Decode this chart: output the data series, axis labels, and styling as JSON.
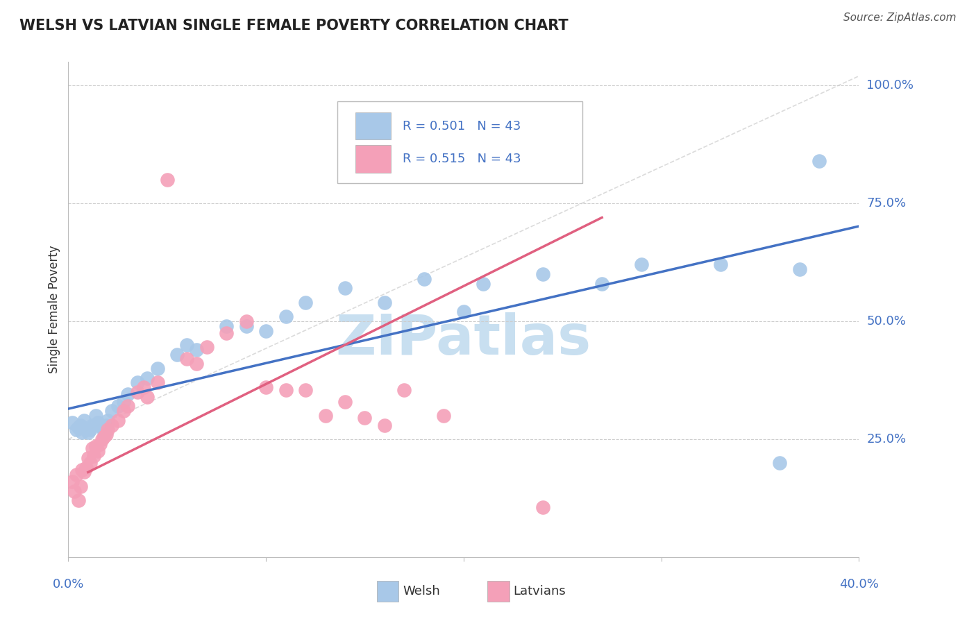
{
  "title": "WELSH VS LATVIAN SINGLE FEMALE POVERTY CORRELATION CHART",
  "source": "Source: ZipAtlas.com",
  "ylabel": "Single Female Poverty",
  "xlim": [
    0.0,
    0.4
  ],
  "ylim": [
    0.0,
    1.05
  ],
  "welsh_R": 0.501,
  "latvian_R": 0.515,
  "N": 43,
  "welsh_color": "#a8c8e8",
  "latvian_color": "#f4a0b8",
  "welsh_line_color": "#4472c4",
  "latvian_line_color": "#e06080",
  "ytick_labels": [
    "25.0%",
    "50.0%",
    "75.0%",
    "100.0%"
  ],
  "ytick_positions": [
    0.25,
    0.5,
    0.75,
    1.0
  ],
  "watermark_text": "ZIPatlas",
  "watermark_color": "#c8dff0",
  "background_color": "#ffffff",
  "grid_color": "#cccccc",
  "welsh_x": [
    0.002,
    0.004,
    0.005,
    0.006,
    0.007,
    0.008,
    0.009,
    0.01,
    0.011,
    0.012,
    0.014,
    0.015,
    0.017,
    0.018,
    0.019,
    0.02,
    0.022,
    0.025,
    0.028,
    0.03,
    0.035,
    0.04,
    0.045,
    0.055,
    0.06,
    0.065,
    0.08,
    0.09,
    0.1,
    0.11,
    0.12,
    0.14,
    0.16,
    0.18,
    0.2,
    0.21,
    0.24,
    0.27,
    0.29,
    0.33,
    0.36,
    0.37,
    0.38
  ],
  "welsh_y": [
    0.285,
    0.27,
    0.275,
    0.28,
    0.265,
    0.29,
    0.27,
    0.265,
    0.27,
    0.28,
    0.3,
    0.285,
    0.275,
    0.265,
    0.28,
    0.29,
    0.31,
    0.32,
    0.33,
    0.345,
    0.37,
    0.38,
    0.4,
    0.43,
    0.45,
    0.44,
    0.49,
    0.49,
    0.48,
    0.51,
    0.54,
    0.57,
    0.54,
    0.59,
    0.52,
    0.58,
    0.6,
    0.58,
    0.62,
    0.62,
    0.2,
    0.61,
    0.84
  ],
  "latvian_x": [
    0.002,
    0.003,
    0.004,
    0.005,
    0.006,
    0.007,
    0.008,
    0.009,
    0.01,
    0.011,
    0.012,
    0.013,
    0.014,
    0.015,
    0.016,
    0.017,
    0.018,
    0.019,
    0.02,
    0.022,
    0.025,
    0.028,
    0.03,
    0.035,
    0.038,
    0.04,
    0.045,
    0.05,
    0.06,
    0.065,
    0.07,
    0.08,
    0.09,
    0.1,
    0.11,
    0.12,
    0.13,
    0.14,
    0.15,
    0.16,
    0.17,
    0.19,
    0.24
  ],
  "latvian_y": [
    0.16,
    0.14,
    0.175,
    0.12,
    0.15,
    0.185,
    0.18,
    0.19,
    0.21,
    0.2,
    0.23,
    0.215,
    0.235,
    0.225,
    0.24,
    0.25,
    0.255,
    0.26,
    0.27,
    0.28,
    0.29,
    0.31,
    0.32,
    0.35,
    0.36,
    0.34,
    0.37,
    0.8,
    0.42,
    0.41,
    0.445,
    0.475,
    0.5,
    0.36,
    0.355,
    0.355,
    0.3,
    0.33,
    0.295,
    0.28,
    0.355,
    0.3,
    0.105
  ],
  "latvian_line_start_x": 0.0,
  "latvian_line_end_x": 0.27,
  "welsh_line_start_x": 0.0,
  "welsh_line_end_x": 0.4,
  "dashed_line_color": "#cccccc"
}
